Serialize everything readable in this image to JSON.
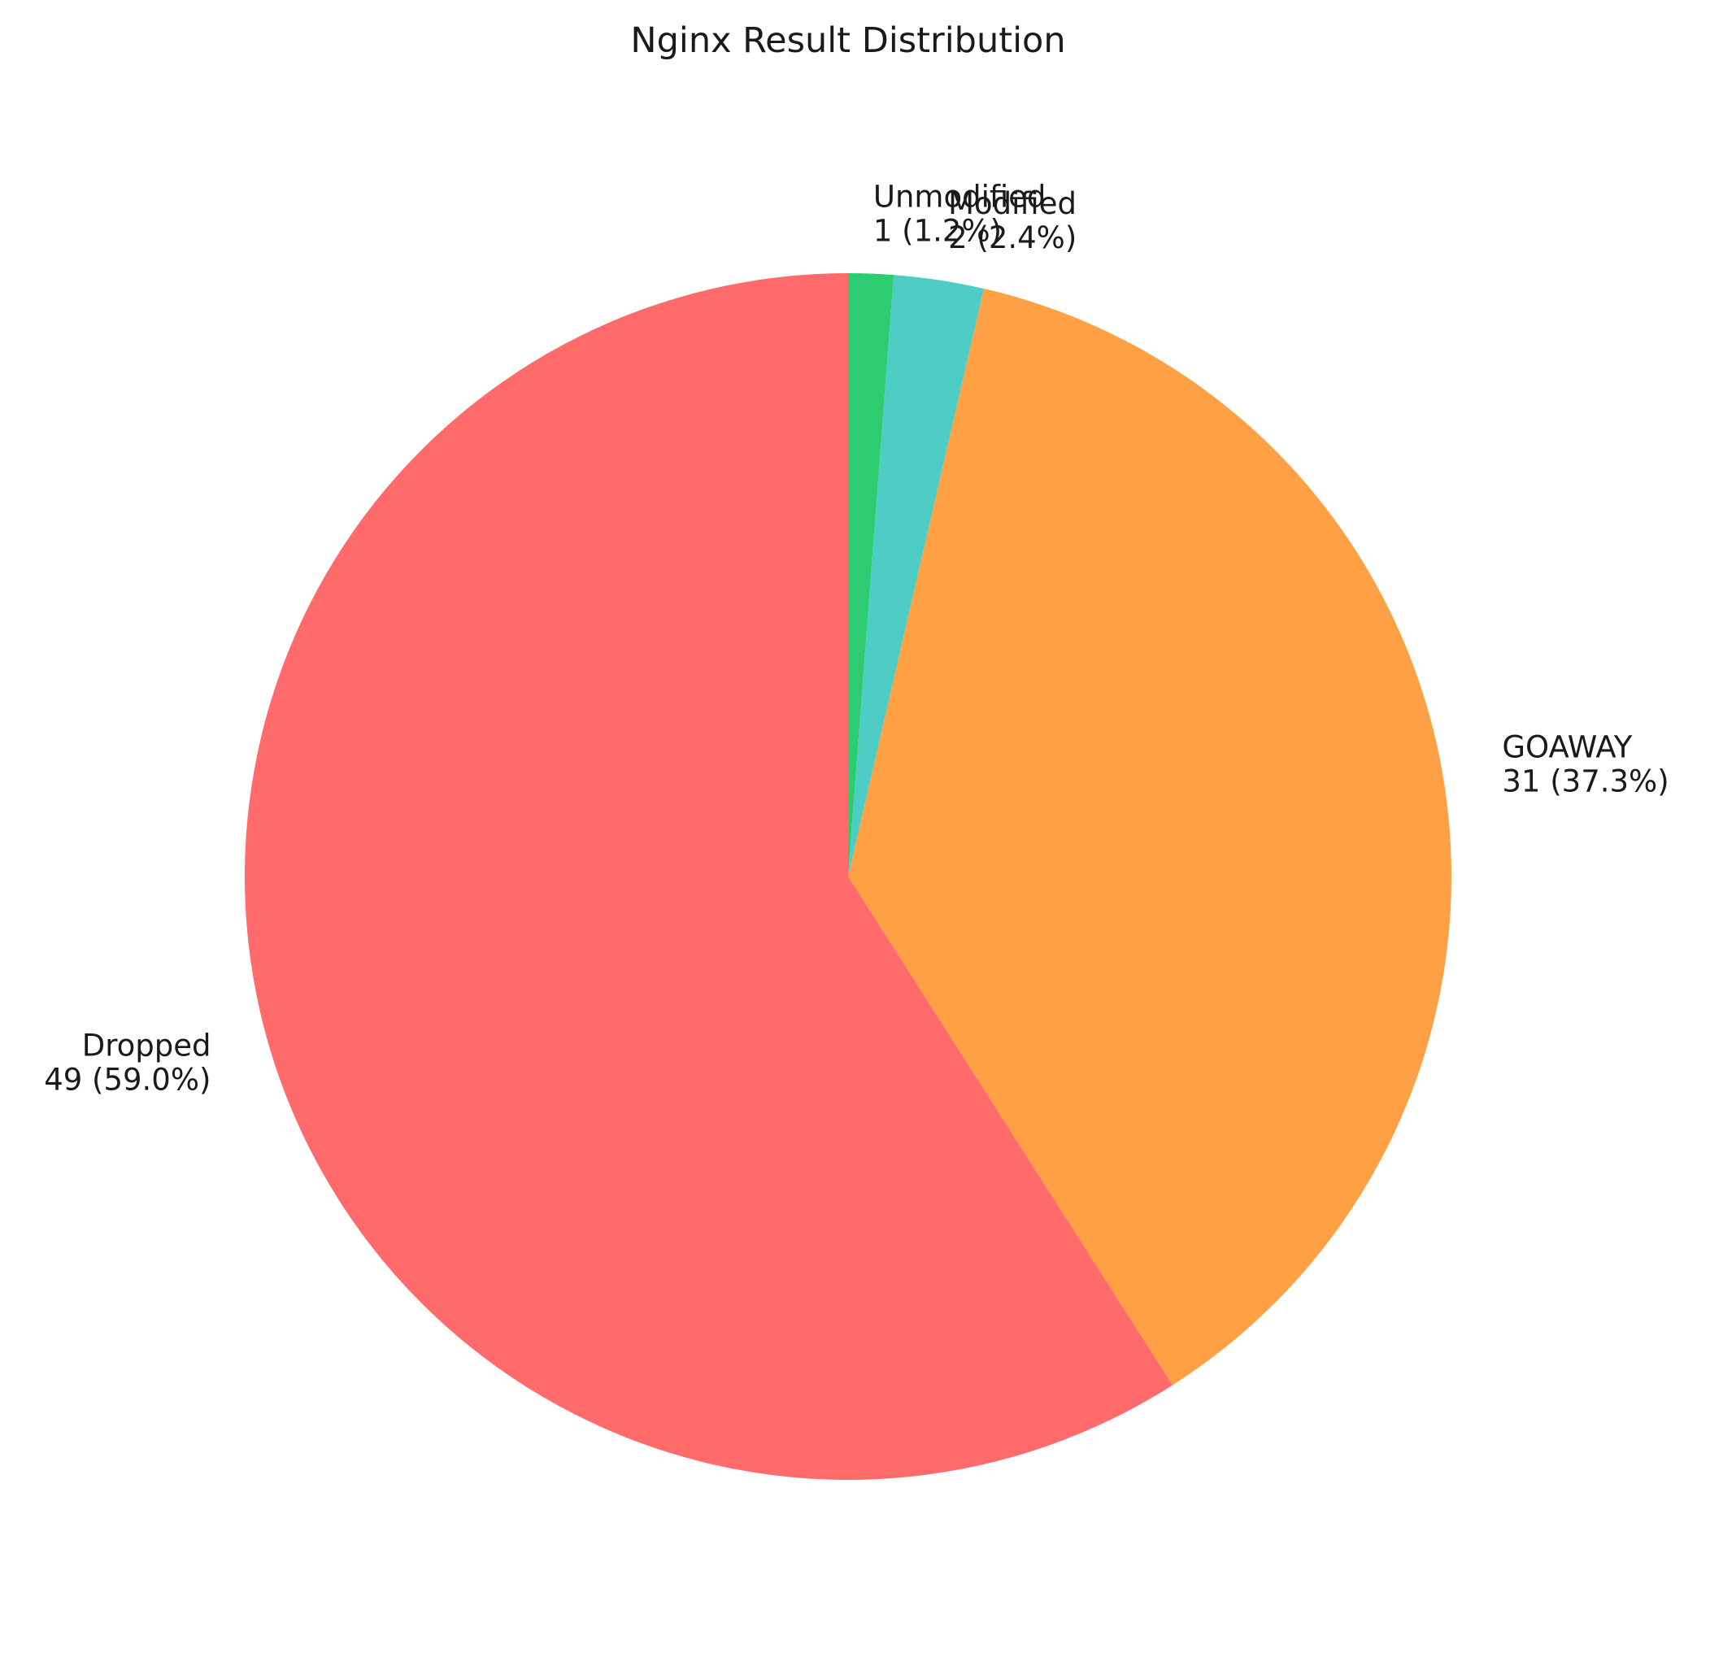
{
  "chart_data": {
    "type": "pie",
    "title": "Nginx Result Distribution",
    "start_angle_deg": 90,
    "direction": "clockwise",
    "slices": [
      {
        "label": "Unmodified",
        "value": 1,
        "percent_label": "1 (1.2%)",
        "color": "#2ecc71"
      },
      {
        "label": "Modified",
        "value": 2,
        "percent_label": "2 (2.4%)",
        "color": "#4ecdc4"
      },
      {
        "label": "GOAWAY",
        "value": 31,
        "percent_label": "31 (37.3%)",
        "color": "#ffa045"
      },
      {
        "label": "Dropped",
        "value": 49,
        "percent_label": "49 (59.0%)",
        "color": "#ff6b6b"
      }
    ]
  }
}
